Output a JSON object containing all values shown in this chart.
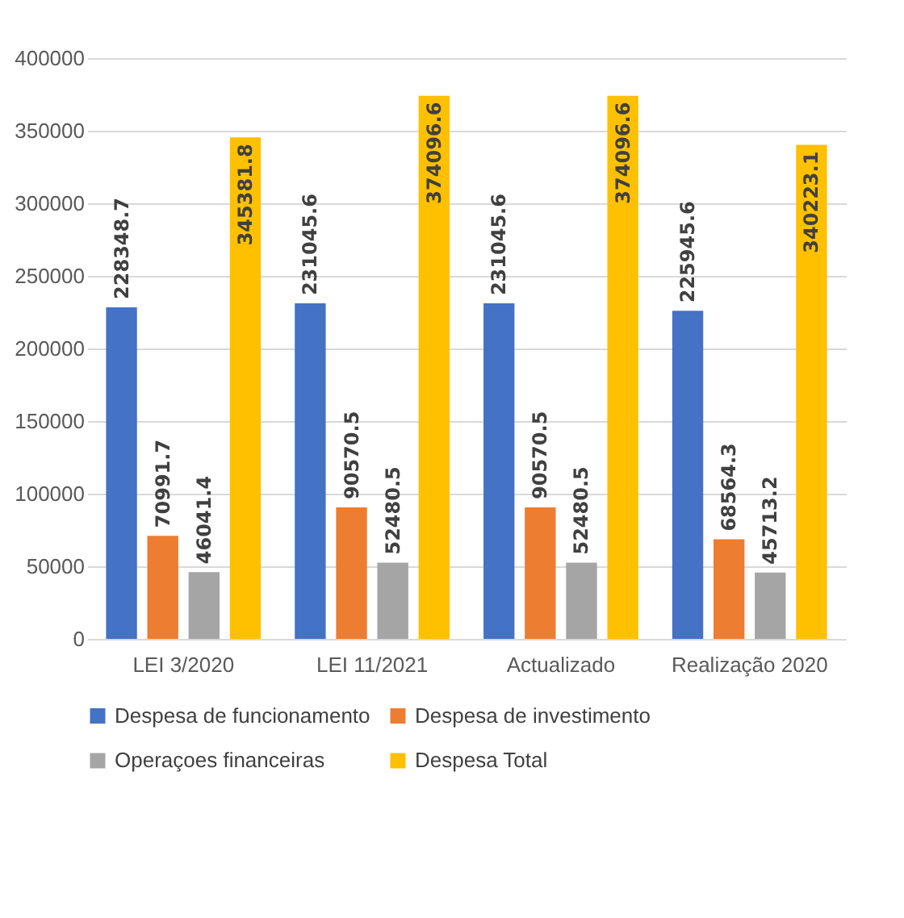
{
  "chart_data": {
    "type": "bar",
    "categories": [
      "LEI 3/2020",
      "LEI 11/2021",
      "Actualizado",
      "Realização 2020"
    ],
    "series": [
      {
        "name": "Despesa de funcionamento",
        "color": "#4472c4",
        "values": [
          228348.7,
          231045.6,
          231045.6,
          225945.6
        ]
      },
      {
        "name": "Despesa de investimento",
        "color": "#ed7d31",
        "values": [
          70991.7,
          90570.5,
          90570.5,
          68564.3
        ]
      },
      {
        "name": "Operaçoes financeiras",
        "color": "#a5a5a5",
        "values": [
          46041.4,
          52480.5,
          52480.5,
          45713.2
        ]
      },
      {
        "name": "Despesa Total",
        "color": "#ffc000",
        "values": [
          345381.8,
          374096.6,
          374096.6,
          340223.1
        ]
      }
    ],
    "ylim": [
      0,
      400000
    ],
    "yticks": [
      0,
      50000,
      100000,
      150000,
      200000,
      250000,
      300000,
      350000,
      400000
    ],
    "grid": "y",
    "legend": "bottom",
    "data_labels": true
  }
}
